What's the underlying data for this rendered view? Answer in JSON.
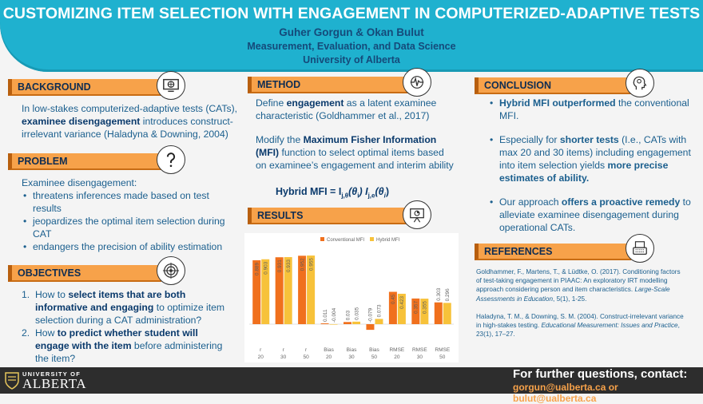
{
  "header": {
    "title": "CUSTOMIZING ITEM SELECTION WITH ENGAGEMENT IN COMPUTERIZED-ADAPTIVE TESTS",
    "authors": "Guher Gorgun & Okan Bulut",
    "department": "Measurement, Evaluation, and Data Science",
    "university": "University of Alberta"
  },
  "background": {
    "heading": "BACKGROUND",
    "icon": "monitor-globe-icon",
    "t1": "In low-stakes computerized-adaptive tests (CATs),",
    "t2_bold": "examinee disengagement",
    "t2": " introduces construct-",
    "t3": "irrelevant variance (Haladyna & Downing, 2004)"
  },
  "problem": {
    "heading": "PROBLEM",
    "icon": "question-mark-icon",
    "intro": "Examinee disengagement:",
    "b1": "threatens inferences made based on test results",
    "b2": "jeopardizes the optimal item selection during CAT",
    "b3": "endangers the precision of ability estimation"
  },
  "objectives": {
    "heading": "OBJECTIVES",
    "icon": "target-icon",
    "o1_a": "How to ",
    "o1_b": "select items that are both informative and engaging",
    "o1_c": " to optimize item selection during a CAT administration?",
    "o2_a": "How ",
    "o2_b": "to predict whether student will engage with the item",
    "o2_c": " before administering the item?"
  },
  "method": {
    "heading": "METHOD",
    "icon": "pulse-icon",
    "p1_a": "Define ",
    "p1_b": "engagement",
    "p1_c": " as a latent examinee characteristic (Goldhammer et al., 2017)",
    "p2_a": "Modify the ",
    "p2_b": "Maximum Fisher Information (MFI)",
    "p2_c": " function to select optimal items based on examinee’s engagement and interim ability",
    "formula": "Hybrid MFI = I",
    "formula_sub1": "j,θ",
    "formula_mid": "(θ",
    "formula_i": "i",
    "formula_mid2": ") I",
    "formula_sub2": "j,e",
    "formula_end": ")"
  },
  "results": {
    "heading": "RESULTS",
    "icon": "presentation-chart-icon"
  },
  "conclusion": {
    "heading": "CONCLUSION",
    "icon": "brain-head-icon",
    "c1_b": "Hybrid MFI outperformed",
    "c1": " the conventional MFI.",
    "c2_a": "Especially for ",
    "c2_b": "shorter tests",
    "c2_c": " (I.e., CATs with max 20 and 30 items) including engagement into item selection yields ",
    "c2_d": "more precise estimates of ability.",
    "c3_a": "Our approach ",
    "c3_b": "offers a proactive remedy",
    "c3_c": " to alleviate examinee disengagement during operational CATs."
  },
  "references": {
    "heading": "REFERENCES",
    "icon": "typewriter-icon",
    "r1": "Goldhammer, F., Martens, T., & Lüdtke, O. (2017). Conditioning factors of test-taking engagement in PIAAC: An exploratory IRT modelling approach considering person and item characteristics. ",
    "r1_i": "Large-Scale Assessments in Education",
    "r1_e": ", 5(1), 1-25.",
    "r2": "Haladyna, T. M., & Downing, S. M. (2004). Construct-irrelevant variance in high-stakes testing. ",
    "r2_i": "Educational Measurement: Issues and Practice",
    "r2_e": ", 23(1), 17–27."
  },
  "footer": {
    "logo_top": "UNIVERSITY OF",
    "logo_main": "ALBERTA",
    "contact_title": "For further questions, contact:",
    "contact_email": "gorgun@ualberta.ca  or bulut@ualberta.ca"
  },
  "colors": {
    "conventional": "#f0701d",
    "hybrid": "#f7c23a"
  },
  "chart_data": {
    "type": "bar",
    "categories": [
      [
        "r",
        "20"
      ],
      [
        "r",
        "30"
      ],
      [
        "r",
        "50"
      ],
      [
        "Bias",
        "20"
      ],
      [
        "Bias",
        "30"
      ],
      [
        "Bias",
        "50"
      ],
      [
        "RMSE",
        "20"
      ],
      [
        "RMSE",
        "30"
      ],
      [
        "RMSE",
        "50"
      ]
    ],
    "series": [
      {
        "name": "Conventional MFI",
        "values": [
          0.889,
          0.931,
          0.952,
          0.011,
          0.03,
          -0.079,
          0.45,
          0.357,
          0.303
        ],
        "labels": [
          "0.889",
          "0.931",
          "0.952",
          "0.011",
          "0.03",
          "-0.079",
          "0.45",
          "0.357",
          "0.303"
        ]
      },
      {
        "name": "Hybrid MFI",
        "values": [
          0.903,
          0.933,
          0.955,
          -0.004,
          0.035,
          0.073,
          0.423,
          0.355,
          0.296
        ],
        "labels": [
          "0.903",
          "0.933",
          "0.955",
          "-0.004",
          "0.035",
          "0.073",
          "0.423",
          "0.355",
          "0.296"
        ]
      }
    ],
    "legend": "top"
  }
}
